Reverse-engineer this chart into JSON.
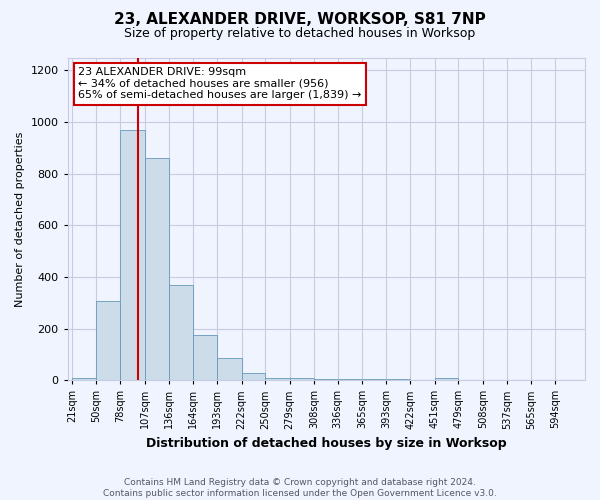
{
  "title": "23, ALEXANDER DRIVE, WORKSOP, S81 7NP",
  "subtitle": "Size of property relative to detached houses in Worksop",
  "xlabel": "Distribution of detached houses by size in Worksop",
  "ylabel": "Number of detached properties",
  "footer": "Contains HM Land Registry data © Crown copyright and database right 2024.\nContains public sector information licensed under the Open Government Licence v3.0.",
  "bins": [
    21,
    50,
    78,
    107,
    136,
    164,
    193,
    222,
    250,
    279,
    308,
    336,
    365,
    393,
    422,
    451,
    479,
    508,
    537,
    565,
    594
  ],
  "bar_heights": [
    10,
    305,
    970,
    860,
    370,
    175,
    85,
    27,
    10,
    8,
    5,
    5,
    5,
    5,
    2,
    10,
    2,
    0,
    0,
    0
  ],
  "bar_color": "#ccdce8",
  "bar_edge_color": "#6699bb",
  "vline_x": 99,
  "vline_color": "#cc0000",
  "annotation_title": "23 ALEXANDER DRIVE: 99sqm",
  "annotation_line1": "← 34% of detached houses are smaller (956)",
  "annotation_line2": "65% of semi-detached houses are larger (1,839) →",
  "annotation_box_color": "#ffffff",
  "annotation_box_edgecolor": "#cc0000",
  "ylim": [
    0,
    1250
  ],
  "yticks": [
    0,
    200,
    400,
    600,
    800,
    1000,
    1200
  ],
  "bg_color": "#f0f4ff",
  "grid_color": "#c8cce0",
  "title_fontsize": 11,
  "subtitle_fontsize": 9,
  "ylabel_fontsize": 8,
  "xlabel_fontsize": 9,
  "tick_fontsize": 7,
  "footer_fontsize": 6.5,
  "annot_fontsize": 8
}
